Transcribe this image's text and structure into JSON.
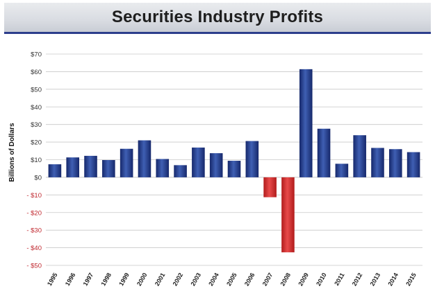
{
  "header": {
    "title": "Securities Industry Profits"
  },
  "colors": {
    "positive_top": "#3f5fb3",
    "positive_bottom": "#16286b",
    "negative_top": "#e84a4a",
    "negative_bottom": "#b11c1c",
    "gridline": "#c8c8c8",
    "tick_positive": "#333333",
    "tick_negative": "#c0282f"
  },
  "chart_data": {
    "type": "bar",
    "title": "Securities Industry Profits",
    "xlabel": "",
    "ylabel": "Billions of Dollars",
    "ylim": [
      -50,
      70
    ],
    "yticks": [
      70,
      60,
      50,
      40,
      30,
      20,
      10,
      0,
      -10,
      -20,
      -30,
      -40,
      -50
    ],
    "ytick_labels": [
      "$70",
      "$60",
      "$50",
      "$40",
      "$30",
      "$20",
      "$10",
      "$0",
      "- $10",
      "- $20",
      "- $30",
      "- $40",
      "- $50"
    ],
    "grid": true,
    "categories": [
      "1995",
      "1996",
      "1997",
      "1998",
      "1999",
      "2000",
      "2001",
      "2002",
      "2003",
      "2004",
      "2005",
      "2006",
      "2007",
      "2008",
      "2009",
      "2010",
      "2011",
      "2012",
      "2013",
      "2014",
      "2015"
    ],
    "values": [
      7.4,
      11.3,
      12.2,
      9.8,
      16.2,
      21.0,
      10.4,
      6.9,
      16.9,
      13.7,
      9.4,
      20.6,
      -11.3,
      -42.6,
      61.4,
      27.6,
      7.7,
      23.9,
      16.7,
      16.0,
      14.3
    ]
  }
}
